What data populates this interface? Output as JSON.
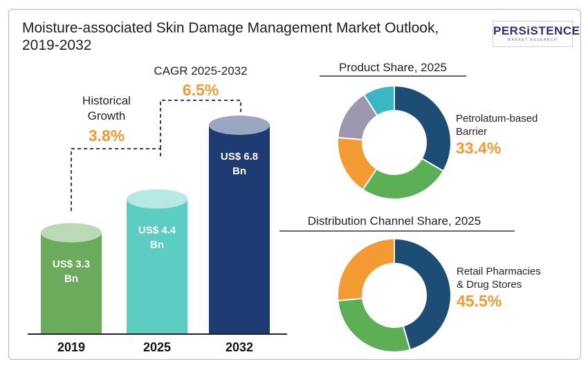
{
  "title": "Moisture-associated Skin Damage Management Market Outlook, 2019-2032",
  "logo": {
    "main": "PERSiSTENCE",
    "sub": "MARKET RESEARCH"
  },
  "colors": {
    "bar_2019": "#6aab5c",
    "bar_2025": "#5ccdc2",
    "bar_2032": "#1f3b73",
    "orange": "#f39a33",
    "dark_blue": "#1d4d74",
    "green": "#5daf55",
    "teal": "#3ab7c2",
    "lavender": "#9c97ae"
  },
  "chart_data": [
    {
      "type": "bar",
      "title": "Moisture-associated Skin Damage Management Market Outlook, 2019-2032",
      "categories": [
        "2019",
        "2025",
        "2032"
      ],
      "values": [
        3.3,
        4.4,
        6.8
      ],
      "value_labels": [
        "US$ 3.3 Bn",
        "US$ 4.4 Bn",
        "US$ 6.8 Bn"
      ],
      "annotations": [
        {
          "label": "Historical Growth",
          "value": "3.8%"
        },
        {
          "label": "CAGR 2025-2032",
          "value": "6.5%"
        }
      ]
    },
    {
      "type": "pie",
      "title": "Product Share, 2025",
      "highlight_label": "Petrolatum-based Barrier",
      "highlight_value": "33.4%",
      "slices": [
        {
          "value": 33.4,
          "color": "#1d4d74"
        },
        {
          "value": 26.0,
          "color": "#5daf55"
        },
        {
          "value": 17.0,
          "color": "#f39a33"
        },
        {
          "value": 14.6,
          "color": "#9c97ae"
        },
        {
          "value": 9.0,
          "color": "#3ab7c2"
        }
      ]
    },
    {
      "type": "pie",
      "title": "Distribution Channel Share, 2025",
      "highlight_label": "Retail Pharmacies & Drug Stores",
      "highlight_value": "45.5%",
      "slices": [
        {
          "value": 45.5,
          "color": "#1d4d74"
        },
        {
          "value": 28.0,
          "color": "#5daf55"
        },
        {
          "value": 26.5,
          "color": "#f39a33"
        }
      ]
    }
  ]
}
